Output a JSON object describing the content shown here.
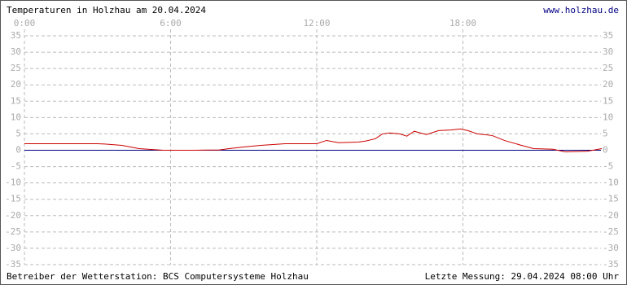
{
  "chart_data": {
    "type": "line",
    "title": "Temperaturen in Holzhau am 20.04.2024",
    "site": "www.holzhau.de",
    "operator": "Betreiber der Wetterstation: BCS Computersysteme Holzhau",
    "last_measurement": "Letzte Messung: 29.04.2024 08:00 Uhr",
    "xlim": [
      0,
      24
    ],
    "xticks": [
      {
        "value": 0,
        "label": "0:00"
      },
      {
        "value": 6,
        "label": "6:00"
      },
      {
        "value": 12,
        "label": "12:00"
      },
      {
        "value": 18,
        "label": "18:00"
      }
    ],
    "ylim": [
      -35,
      35
    ],
    "yticks": [
      35,
      30,
      25,
      20,
      15,
      10,
      5,
      0,
      -5,
      -10,
      -15,
      -20,
      -25,
      -30,
      -35
    ],
    "grid": true,
    "zero_line_color": "#000080",
    "series": [
      {
        "color": "#cc0000",
        "x": [
          0,
          1,
          2,
          3,
          3.3,
          4,
          4.7,
          5.7,
          7,
          8,
          8.4,
          9,
          9.7,
          10.7,
          12,
          12.4,
          12.9,
          13.7,
          14,
          14.4,
          14.7,
          15,
          15.4,
          15.7,
          16,
          16.5,
          17,
          17.5,
          17.9,
          18.2,
          18.6,
          19.2,
          19.7,
          20.4,
          20.9,
          21.7,
          22.2,
          23.1,
          23.7
        ],
        "values": [
          2,
          2,
          2,
          2,
          1.9,
          1.5,
          0.5,
          0,
          0,
          0.1,
          0.5,
          1,
          1.5,
          2,
          2,
          3,
          2.3,
          2.5,
          2.8,
          3.5,
          5,
          5.3,
          5,
          4.3,
          5.8,
          4.8,
          6,
          6.2,
          6.5,
          6,
          5,
          4.5,
          3,
          1.5,
          0.5,
          0.3,
          -0.5,
          -0.3,
          0.5
        ]
      }
    ]
  }
}
